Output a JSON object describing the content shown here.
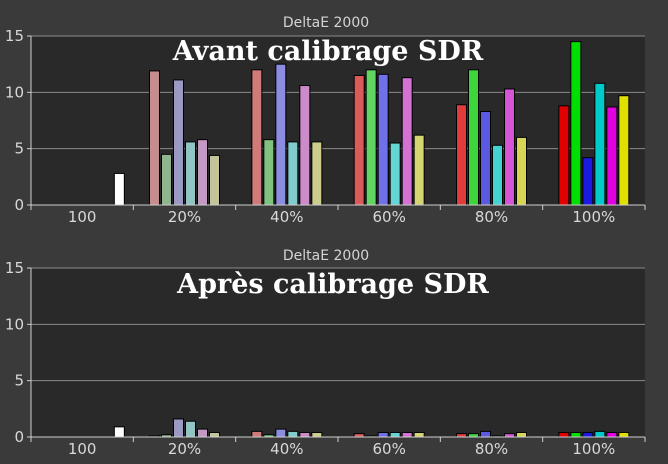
{
  "chart_data": [
    {
      "type": "bar",
      "title": "DeltaE 2000",
      "annotation": "Avant calibrage SDR",
      "ylim": [
        0,
        15
      ],
      "yticks": [
        "0",
        "5",
        "10",
        "15"
      ],
      "categories": [
        "100",
        "20%",
        "40%",
        "60%",
        "80%",
        "100%"
      ],
      "grid": "horizontal",
      "groups": [
        [
          {
            "color": "#ffffff",
            "value": 2.8
          }
        ],
        [
          {
            "color": "#c58d8d",
            "value": 11.9
          },
          {
            "color": "#8fb58f",
            "value": 4.5
          },
          {
            "color": "#9a9ac4",
            "value": 11.1
          },
          {
            "color": "#92c4c4",
            "value": 5.6
          },
          {
            "color": "#c49ac4",
            "value": 5.8
          },
          {
            "color": "#c4c49a",
            "value": 4.4
          }
        ],
        [
          {
            "color": "#d07a7a",
            "value": 12.0
          },
          {
            "color": "#7ec47e",
            "value": 5.8
          },
          {
            "color": "#8c8ce0",
            "value": 12.5
          },
          {
            "color": "#80cccc",
            "value": 5.6
          },
          {
            "color": "#cc8ccc",
            "value": 10.6
          },
          {
            "color": "#cccc8c",
            "value": 5.6
          }
        ],
        [
          {
            "color": "#d95b5b",
            "value": 11.5
          },
          {
            "color": "#62d462",
            "value": 12.0
          },
          {
            "color": "#7070e8",
            "value": 11.6
          },
          {
            "color": "#66d4d4",
            "value": 5.5
          },
          {
            "color": "#d472d4",
            "value": 11.3
          },
          {
            "color": "#d4d472",
            "value": 6.2
          }
        ],
        [
          {
            "color": "#e03c3c",
            "value": 8.9
          },
          {
            "color": "#3cd63c",
            "value": 12.0
          },
          {
            "color": "#5a5ae0",
            "value": 8.3
          },
          {
            "color": "#44d2d2",
            "value": 5.3
          },
          {
            "color": "#d654d6",
            "value": 10.3
          },
          {
            "color": "#d6d654",
            "value": 6.0
          }
        ],
        [
          {
            "color": "#e00000",
            "value": 8.8
          },
          {
            "color": "#00e000",
            "value": 14.5
          },
          {
            "color": "#1a1ae0",
            "value": 4.2
          },
          {
            "color": "#00caca",
            "value": 10.8
          },
          {
            "color": "#e000e0",
            "value": 8.7
          },
          {
            "color": "#e0e000",
            "value": 9.7
          }
        ]
      ]
    },
    {
      "type": "bar",
      "title": "DeltaE 2000",
      "annotation": "Après calibrage SDR",
      "ylim": [
        0,
        15
      ],
      "yticks": [
        "0",
        "5",
        "10",
        "15"
      ],
      "categories": [
        "100",
        "20%",
        "40%",
        "60%",
        "80%",
        "100%"
      ],
      "grid": "horizontal",
      "groups": [
        [
          {
            "color": "#ffffff",
            "value": 0.9
          }
        ],
        [
          {
            "color": "#c58d8d",
            "value": 0.1
          },
          {
            "color": "#8fb58f",
            "value": 0.2
          },
          {
            "color": "#9a9ac4",
            "value": 1.6
          },
          {
            "color": "#92c4c4",
            "value": 1.4
          },
          {
            "color": "#c49ac4",
            "value": 0.7
          },
          {
            "color": "#c4c49a",
            "value": 0.4
          }
        ],
        [
          {
            "color": "#d07a7a",
            "value": 0.5
          },
          {
            "color": "#7ec47e",
            "value": 0.2
          },
          {
            "color": "#8c8ce0",
            "value": 0.7
          },
          {
            "color": "#80cccc",
            "value": 0.5
          },
          {
            "color": "#cc8ccc",
            "value": 0.4
          },
          {
            "color": "#cccc8c",
            "value": 0.4
          }
        ],
        [
          {
            "color": "#d95b5b",
            "value": 0.3
          },
          {
            "color": "#62d462",
            "value": 0.1
          },
          {
            "color": "#7070e8",
            "value": 0.4
          },
          {
            "color": "#66d4d4",
            "value": 0.4
          },
          {
            "color": "#d472d4",
            "value": 0.4
          },
          {
            "color": "#d4d472",
            "value": 0.4
          }
        ],
        [
          {
            "color": "#e03c3c",
            "value": 0.3
          },
          {
            "color": "#3cd63c",
            "value": 0.3
          },
          {
            "color": "#5a5ae0",
            "value": 0.5
          },
          {
            "color": "#44d2d2",
            "value": 0.1
          },
          {
            "color": "#d654d6",
            "value": 0.3
          },
          {
            "color": "#d6d654",
            "value": 0.4
          }
        ],
        [
          {
            "color": "#e00000",
            "value": 0.4
          },
          {
            "color": "#00e000",
            "value": 0.4
          },
          {
            "color": "#1a1ae0",
            "value": 0.4
          },
          {
            "color": "#00caca",
            "value": 0.5
          },
          {
            "color": "#e000e0",
            "value": 0.4
          },
          {
            "color": "#e0e000",
            "value": 0.4
          }
        ]
      ]
    }
  ]
}
